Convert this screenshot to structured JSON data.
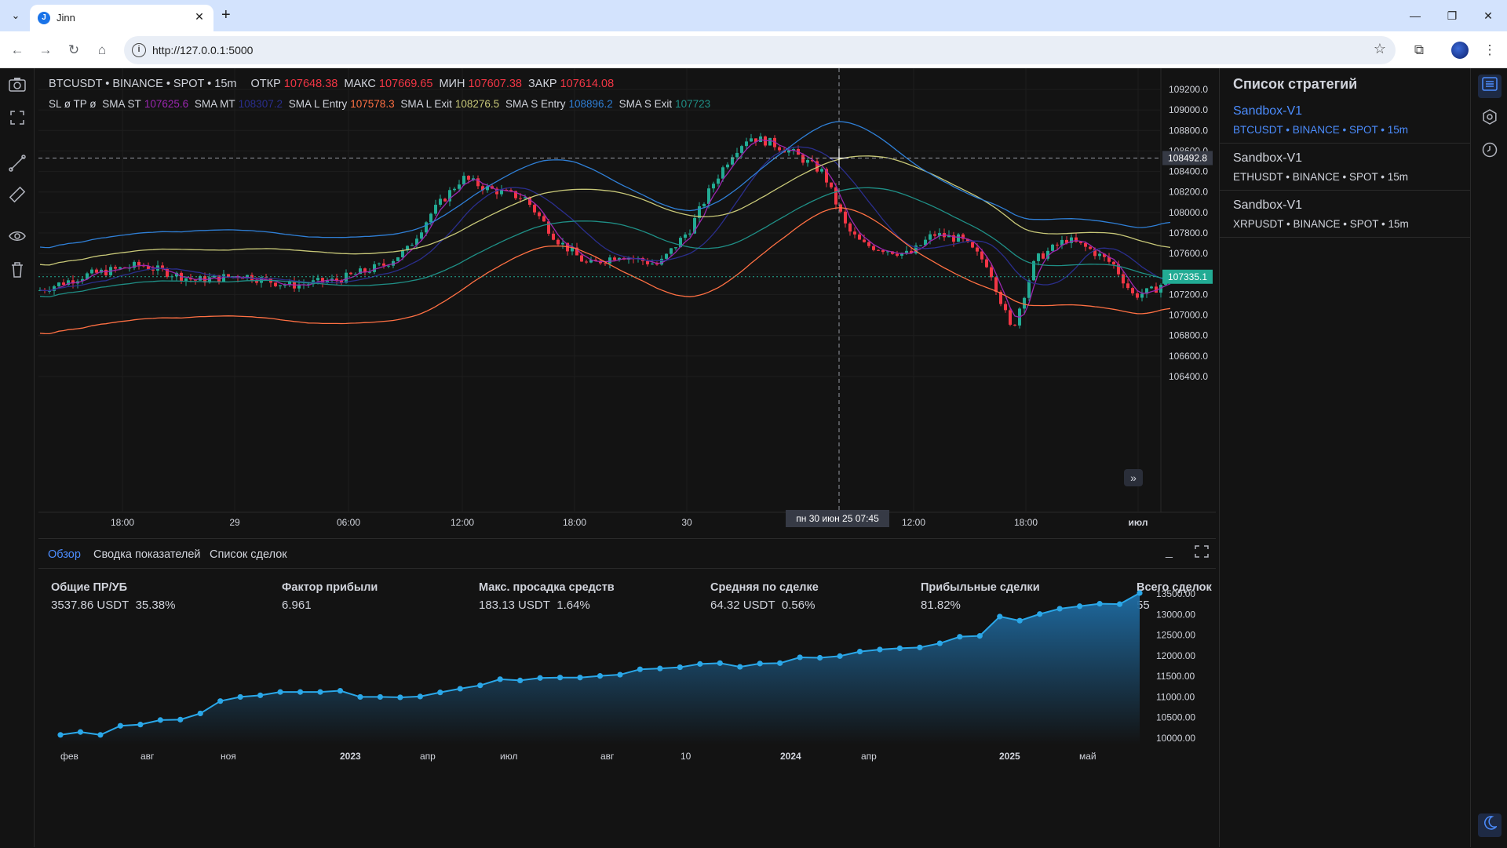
{
  "browser": {
    "tab_title": "Jinn",
    "tab_favicon_letter": "J",
    "url": "http://127.0.0.1:5000"
  },
  "chart": {
    "legend": {
      "symbol": "BTCUSDT • BINANCE • SPOT • 15m",
      "open_label": "ОТКР",
      "open": "107648.38",
      "high_label": "МАКС",
      "high": "107669.65",
      "low_label": "МИН",
      "low": "107607.38",
      "close_label": "ЗАКР",
      "close": "107614.08"
    },
    "indicators": {
      "sl_tp": "SL ø TP ø",
      "sma_st_label": "SMA ST",
      "sma_st": "107625.6",
      "sma_mt_label": "SMA MT",
      "sma_mt": "108307.2",
      "sma_l_entry_label": "SMA L Entry",
      "sma_l_entry": "107578.3",
      "sma_l_exit_label": "SMA L Exit",
      "sma_l_exit": "108276.5",
      "sma_s_entry_label": "SMA S Entry",
      "sma_s_entry": "108896.2",
      "sma_s_exit_label": "SMA S Exit",
      "sma_s_exit": "107723"
    },
    "price_ticks": [
      "109200.0",
      "109000.0",
      "108800.0",
      "108600.0",
      "108400.0",
      "108200.0",
      "108000.0",
      "107800.0",
      "107600.0",
      "107400.0",
      "107200.0",
      "107000.0",
      "106800.0",
      "106600.0",
      "106400.0"
    ],
    "time_ticks": [
      "18:00",
      "29",
      "06:00",
      "12:00",
      "18:00",
      "30",
      "12:00",
      "18:00",
      "июл"
    ],
    "crosshair_price": "108492.8",
    "crosshair_time": "пн 30 июн 25  07:45",
    "last_price": "107335.1",
    "colors": {
      "up": "#22ab94",
      "down": "#f23645",
      "sma_st": "#9c27b0",
      "sma_mt": "#2a2e8c",
      "l_entry": "#ff7043",
      "l_exit": "#c8c878",
      "s_entry": "#2f7fd6",
      "s_exit": "#1f8f86"
    }
  },
  "panel": {
    "tabs": [
      "Обзор",
      "Сводка показателей",
      "Список сделок"
    ],
    "metrics": [
      {
        "title": "Общие ПР/УБ",
        "value": "3537.86 USDT",
        "extra": "35.38%"
      },
      {
        "title": "Фактор прибыли",
        "value": "6.961",
        "extra": ""
      },
      {
        "title": "Макс. просадка средств",
        "value": "183.13 USDT",
        "extra": "1.64%"
      },
      {
        "title": "Средняя по сделке",
        "value": "64.32 USDT",
        "extra": "0.56%"
      },
      {
        "title": "Прибыльные сделки",
        "value": "81.82%",
        "extra": ""
      },
      {
        "title": "Всего сделок",
        "value": "55",
        "extra": ""
      }
    ]
  },
  "chart_data": {
    "type": "area",
    "title": "",
    "x_tick_labels": [
      "фев",
      "авг",
      "ноя",
      "2023",
      "апр",
      "июл",
      "авг",
      "10",
      "2024",
      "апр",
      "2025",
      "май"
    ],
    "y_ticks": [
      "13500.00",
      "13000.00",
      "12500.00",
      "12000.00",
      "11500.00",
      "11000.00",
      "10500.00",
      "10000.00"
    ],
    "ylim": [
      10000,
      13500
    ],
    "series": [
      {
        "values": [
          10080,
          10150,
          10080,
          10300,
          10330,
          10440,
          10450,
          10600,
          10900,
          11000,
          11040,
          11120,
          11120,
          11120,
          11150,
          11000,
          11000,
          10990,
          11010,
          11110,
          11200,
          11280,
          11430,
          11400,
          11460,
          11470,
          11470,
          11510,
          11540,
          11670,
          11690,
          11720,
          11800,
          11820,
          11730,
          11810,
          11820,
          11960,
          11950,
          11990,
          12100,
          12150,
          12180,
          12200,
          12300,
          12460,
          12480,
          12950,
          12850,
          13010,
          13140,
          13200,
          13260,
          13250,
          13520
        ]
      }
    ],
    "grid": false,
    "legend": "none"
  },
  "sidebar": {
    "title": "Список стратегий",
    "items": [
      {
        "name": "Sandbox-V1",
        "sub": "BTCUSDT • BINANCE • SPOT • 15m"
      },
      {
        "name": "Sandbox-V1",
        "sub": "ETHUSDT • BINANCE • SPOT • 15m"
      },
      {
        "name": "Sandbox-V1",
        "sub": "XRPUSDT • BINANCE • SPOT • 15m"
      }
    ]
  }
}
